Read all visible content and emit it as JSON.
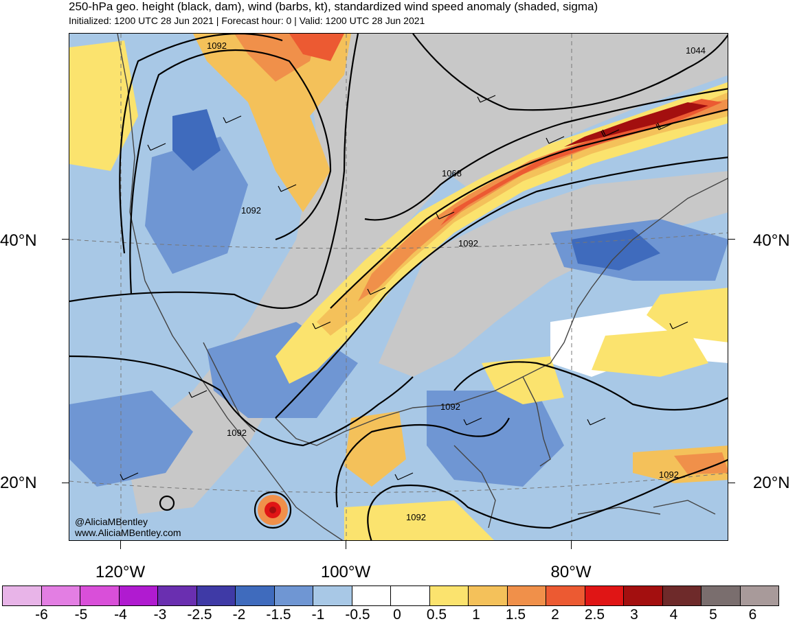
{
  "title": "250-hPa geo. height (black, dam), wind (barbs, kt), standardized wind speed anomaly (shaded, sigma)",
  "subtitle": "Initialized: 1200 UTC 28 Jun 2021 | Forecast hour: 0 | Valid: 1200 UTC 28 Jun 2021",
  "lat_labels": [
    "40°N",
    "20°N"
  ],
  "lon_labels": [
    "120°W",
    "100°W",
    "80°W"
  ],
  "contour_labels": [
    "1092",
    "1044",
    "1068",
    "1092",
    "1092",
    "1092",
    "1092",
    "1092",
    "1092"
  ],
  "credit": {
    "handle": "@AliciaMBentley",
    "site": "www.AliciaMBentley.com"
  },
  "colorbar": {
    "labels": [
      "-6",
      "-5",
      "-4",
      "-3",
      "-2.5",
      "-2",
      "-1.5",
      "-1",
      "-0.5",
      "0",
      "0.5",
      "1",
      "1.5",
      "2",
      "2.5",
      "3",
      "4",
      "5",
      "6"
    ],
    "colors": [
      "#e8b4e8",
      "#e37ee3",
      "#d94fd9",
      "#b01bd0",
      "#6a2fb0",
      "#3f3aa6",
      "#3f6bbd",
      "#6f96d3",
      "#a8c8e6",
      "#ffffff",
      "#ffffff",
      "#fbe36e",
      "#f4c15a",
      "#f0904a",
      "#ec5a32",
      "#e01515",
      "#a30f0f",
      "#6e2a2a",
      "#7a6e6e",
      "#a89a9a"
    ]
  }
}
